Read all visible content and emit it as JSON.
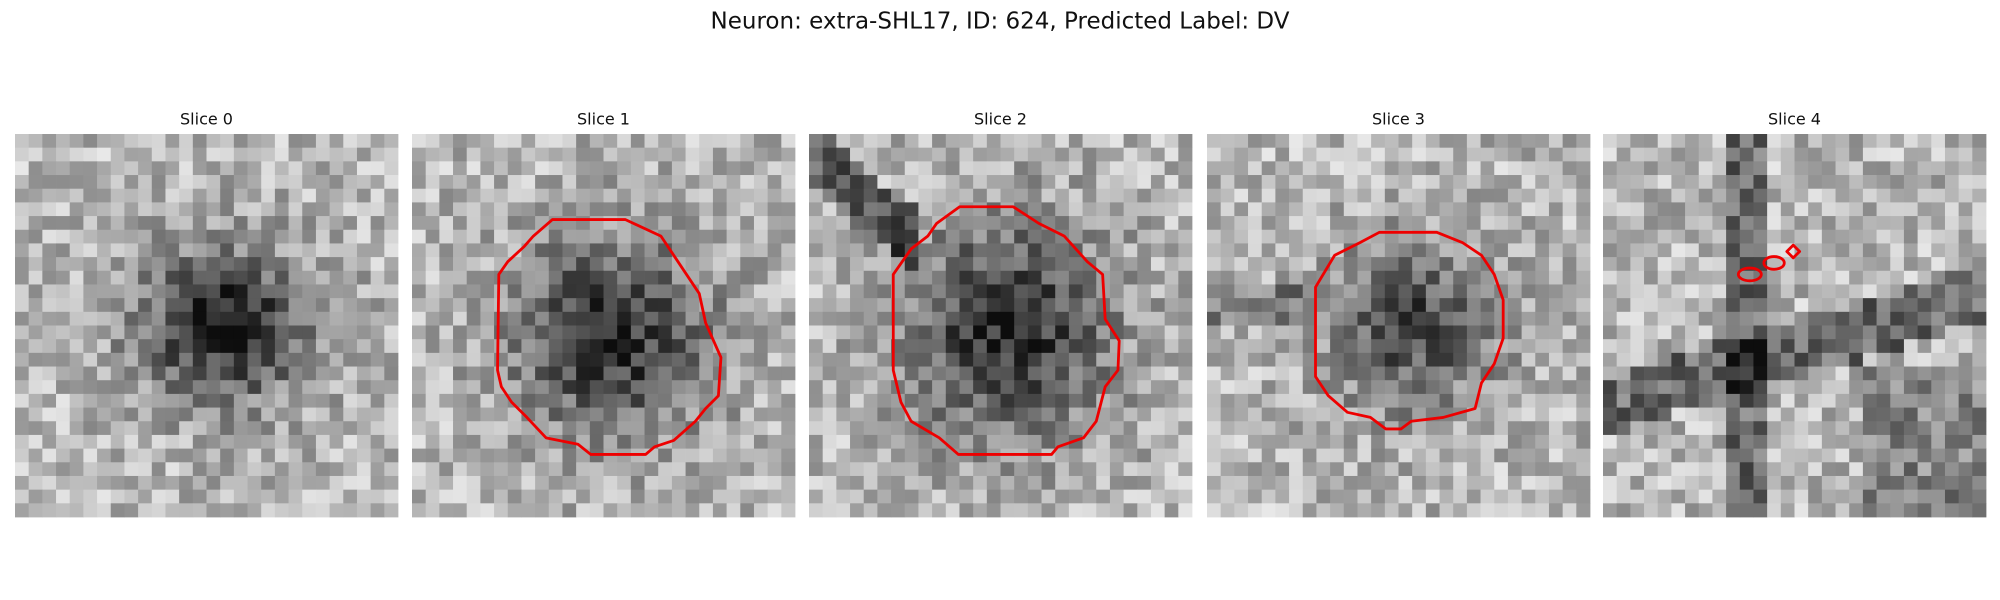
{
  "title": "Neuron: extra-SHL17, ID: 624, Predicted Label: DV",
  "panels": [
    {
      "title": "Slice 0"
    },
    {
      "title": "Slice 1"
    },
    {
      "title": "Slice 2"
    },
    {
      "title": "Slice 3"
    },
    {
      "title": "Slice 4"
    }
  ]
}
